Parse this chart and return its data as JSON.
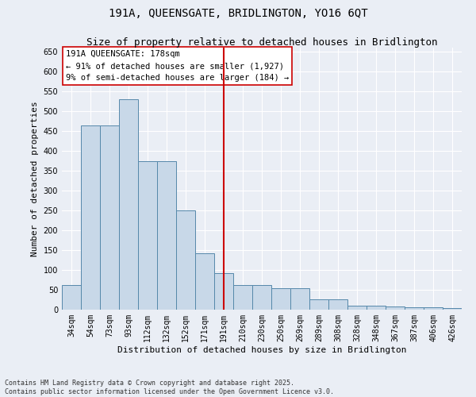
{
  "title_line1": "191A, QUEENSGATE, BRIDLINGTON, YO16 6QT",
  "title_line2": "Size of property relative to detached houses in Bridlington",
  "xlabel": "Distribution of detached houses by size in Bridlington",
  "ylabel": "Number of detached properties",
  "categories": [
    "34sqm",
    "54sqm",
    "73sqm",
    "93sqm",
    "112sqm",
    "132sqm",
    "152sqm",
    "171sqm",
    "191sqm",
    "210sqm",
    "230sqm",
    "250sqm",
    "269sqm",
    "289sqm",
    "308sqm",
    "328sqm",
    "348sqm",
    "367sqm",
    "387sqm",
    "406sqm",
    "426sqm"
  ],
  "values": [
    62,
    464,
    465,
    530,
    375,
    375,
    250,
    143,
    93,
    63,
    62,
    54,
    55,
    27,
    27,
    10,
    11,
    8,
    7,
    7,
    5
  ],
  "bar_color": "#c8d8e8",
  "bar_edge_color": "#5588aa",
  "vline_x_idx": 8,
  "vline_color": "#cc0000",
  "annotation_box_text": "191A QUEENSGATE: 178sqm\n← 91% of detached houses are smaller (1,927)\n9% of semi-detached houses are larger (184) →",
  "ylim": [
    0,
    660
  ],
  "yticks": [
    0,
    50,
    100,
    150,
    200,
    250,
    300,
    350,
    400,
    450,
    500,
    550,
    600,
    650
  ],
  "background_color": "#eaeef5",
  "plot_bg_color": "#eaeef5",
  "grid_color": "#ffffff",
  "footer_text": "Contains HM Land Registry data © Crown copyright and database right 2025.\nContains public sector information licensed under the Open Government Licence v3.0.",
  "title_fontsize": 10,
  "subtitle_fontsize": 9,
  "axis_label_fontsize": 8,
  "tick_fontsize": 7,
  "annotation_fontsize": 7.5,
  "footer_fontsize": 6
}
